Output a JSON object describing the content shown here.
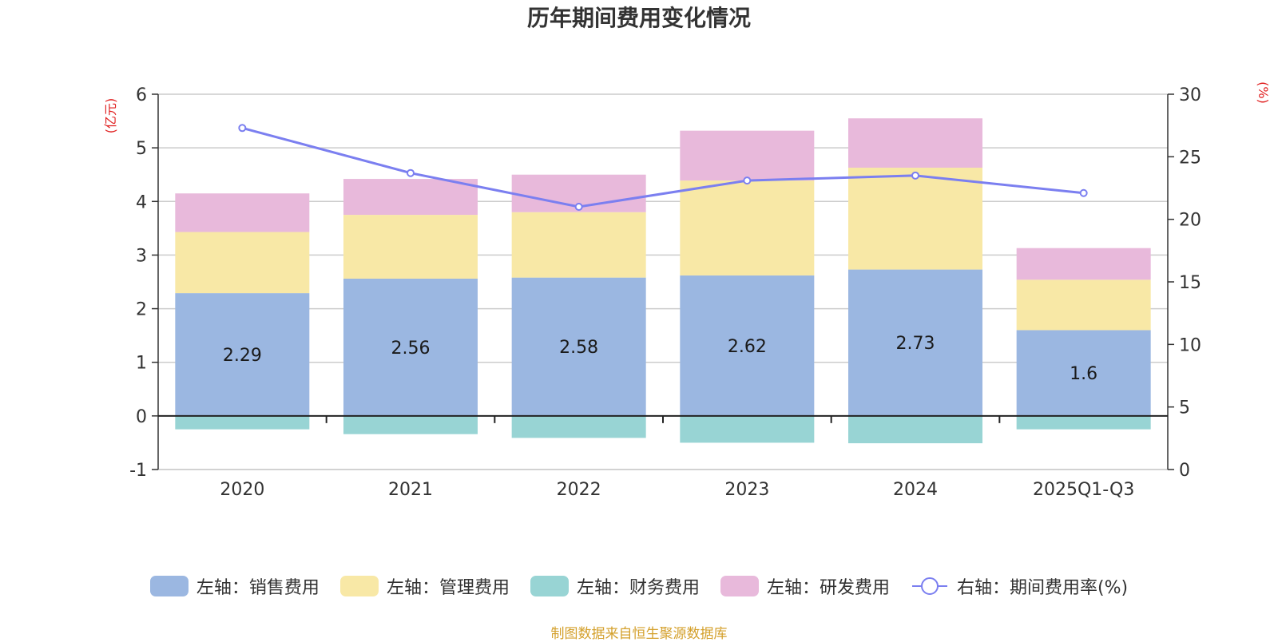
{
  "chart_data": {
    "type": "bar",
    "stacked": true,
    "title": "历年期间费用变化情况",
    "categories": [
      "2020",
      "2021",
      "2022",
      "2023",
      "2024",
      "2025Q1-Q3"
    ],
    "left_axis": {
      "unit": "(亿元)",
      "range": [
        -1,
        6
      ],
      "ticks": [
        "-1",
        "0",
        "1",
        "2",
        "3",
        "4",
        "5",
        "6"
      ]
    },
    "right_axis": {
      "unit": "(%)",
      "range": [
        0,
        30
      ],
      "ticks": [
        "0",
        "5",
        "10",
        "15",
        "20",
        "25",
        "30"
      ]
    },
    "series": [
      {
        "name": "左轴：销售费用",
        "type": "bar",
        "axis": "left",
        "color": "#9bb7e1",
        "values": [
          2.29,
          2.56,
          2.58,
          2.62,
          2.73,
          1.6
        ],
        "labels": [
          "2.29",
          "2.56",
          "2.58",
          "2.62",
          "2.73",
          "1.6"
        ]
      },
      {
        "name": "左轴：管理费用",
        "type": "bar",
        "axis": "left",
        "color": "#f8e8a6",
        "values": [
          1.14,
          1.19,
          1.22,
          1.77,
          1.9,
          0.94
        ]
      },
      {
        "name": "左轴：财务费用",
        "type": "bar",
        "axis": "left",
        "color": "#98d4d4",
        "values": [
          -0.25,
          -0.34,
          -0.41,
          -0.5,
          -0.51,
          -0.25
        ]
      },
      {
        "name": "左轴：研发费用",
        "type": "bar",
        "axis": "left",
        "color": "#e8b9db",
        "values": [
          0.72,
          0.67,
          0.7,
          0.93,
          0.92,
          0.59
        ]
      },
      {
        "name": "右轴：期间费用率(%)",
        "type": "line",
        "axis": "right",
        "color": "#7b7ff0",
        "values": [
          27.3,
          23.7,
          21.0,
          23.1,
          23.5,
          22.1
        ]
      }
    ],
    "legend_position": "bottom",
    "grid": true
  },
  "source": "制图数据来自恒生聚源数据库"
}
